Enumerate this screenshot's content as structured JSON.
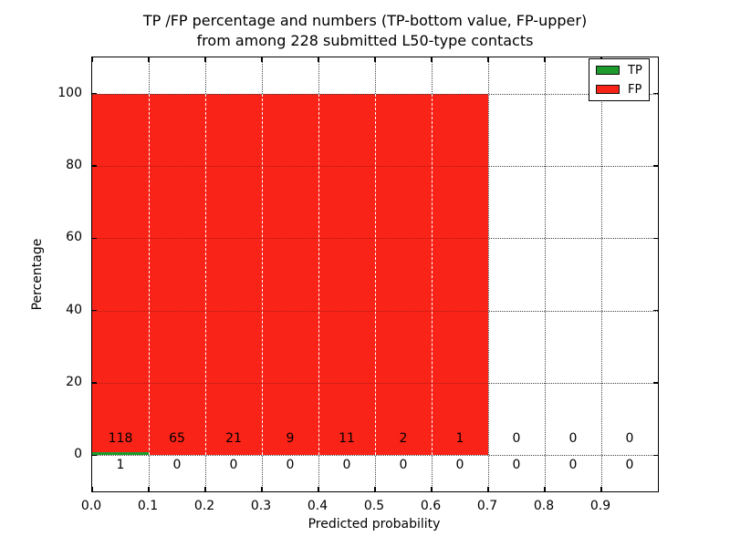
{
  "chart_data": {
    "type": "bar",
    "stacked": true,
    "title_line1": "TP /FP percentage and numbers (TP-bottom value, FP-upper)",
    "title_line2": "from among 228 submitted L50-type contacts",
    "xlabel": "Predicted probability",
    "ylabel": "Percentage",
    "total_contacts": 228,
    "xlim": [
      0.0,
      1.0
    ],
    "ylim": [
      -10,
      110
    ],
    "bin_width": 0.1,
    "bin_starts": [
      0.0,
      0.1,
      0.2,
      0.3,
      0.4,
      0.5,
      0.6,
      0.7,
      0.8,
      0.9
    ],
    "grid_style": "dotted",
    "legend_position": "upper-right",
    "x_ticks": [
      {
        "pos": 0.0,
        "label": "0.0"
      },
      {
        "pos": 0.1,
        "label": "0.1"
      },
      {
        "pos": 0.2,
        "label": "0.2"
      },
      {
        "pos": 0.3,
        "label": "0.3"
      },
      {
        "pos": 0.4,
        "label": "0.4"
      },
      {
        "pos": 0.5,
        "label": "0.5"
      },
      {
        "pos": 0.6,
        "label": "0.6"
      },
      {
        "pos": 0.7,
        "label": "0.7"
      },
      {
        "pos": 0.8,
        "label": "0.8"
      },
      {
        "pos": 0.9,
        "label": "0.9"
      }
    ],
    "y_ticks": [
      {
        "pos": 0,
        "label": "0"
      },
      {
        "pos": 20,
        "label": "20"
      },
      {
        "pos": 40,
        "label": "40"
      },
      {
        "pos": 60,
        "label": "60"
      },
      {
        "pos": 80,
        "label": "80"
      },
      {
        "pos": 100,
        "label": "100"
      }
    ],
    "series": [
      {
        "name": "TP",
        "color": "#1e9b2d",
        "counts": [
          1,
          0,
          0,
          0,
          0,
          0,
          0,
          0,
          0,
          0
        ]
      },
      {
        "name": "FP",
        "color": "#fa2318",
        "counts": [
          118,
          65,
          21,
          9,
          11,
          2,
          1,
          0,
          0,
          0
        ]
      }
    ]
  }
}
